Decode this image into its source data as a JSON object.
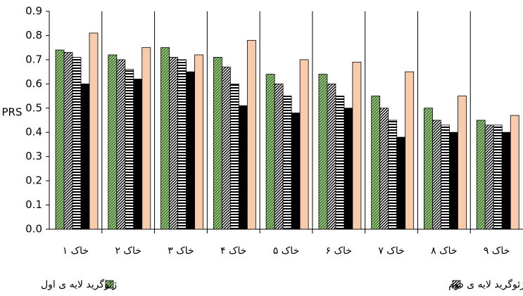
{
  "chart_data": {
    "type": "bar",
    "y_label": "PRS",
    "categories": [
      "خاک ۱",
      "خاک ۲",
      "خاک ۳",
      "خاک ۴",
      "خاک ۵",
      "خاک ۶",
      "خاک ۷",
      "خاک ۸",
      "خاک ۹"
    ],
    "series": [
      {
        "name": "ژئوگرید لایه ی اول",
        "color": "#a9d18e",
        "hatch": "diagonal",
        "values": [
          0.74,
          0.72,
          0.75,
          0.71,
          0.64,
          0.64,
          0.55,
          0.5,
          0.45
        ]
      },
      {
        "name": "ژئوگرید لایه ی دوم",
        "color": "#000000",
        "hatch": "diagonal",
        "values": [
          0.73,
          0.7,
          0.71,
          0.67,
          0.6,
          0.6,
          0.5,
          0.45,
          0.43
        ]
      },
      {
        "color": "#000000",
        "hatch": "horizontal",
        "values": [
          0.71,
          0.66,
          0.7,
          0.6,
          0.55,
          0.55,
          0.45,
          0.43,
          0.43
        ]
      },
      {
        "color": "#000000",
        "values": [
          0.6,
          0.62,
          0.65,
          0.51,
          0.48,
          0.5,
          0.38,
          0.4,
          0.4
        ]
      },
      {
        "color": "#f8cbad",
        "values": [
          0.81,
          0.75,
          0.72,
          0.78,
          0.7,
          0.69,
          0.65,
          0.55,
          0.47
        ]
      }
    ],
    "ylim": [
      0,
      0.9
    ],
    "yticks": [
      {
        "value": 0,
        "label": "0.0"
      },
      0.1,
      0.2,
      0.3,
      0.4,
      0.5,
      0.6,
      0.7,
      0.8,
      0.9
    ],
    "grid": false
  }
}
